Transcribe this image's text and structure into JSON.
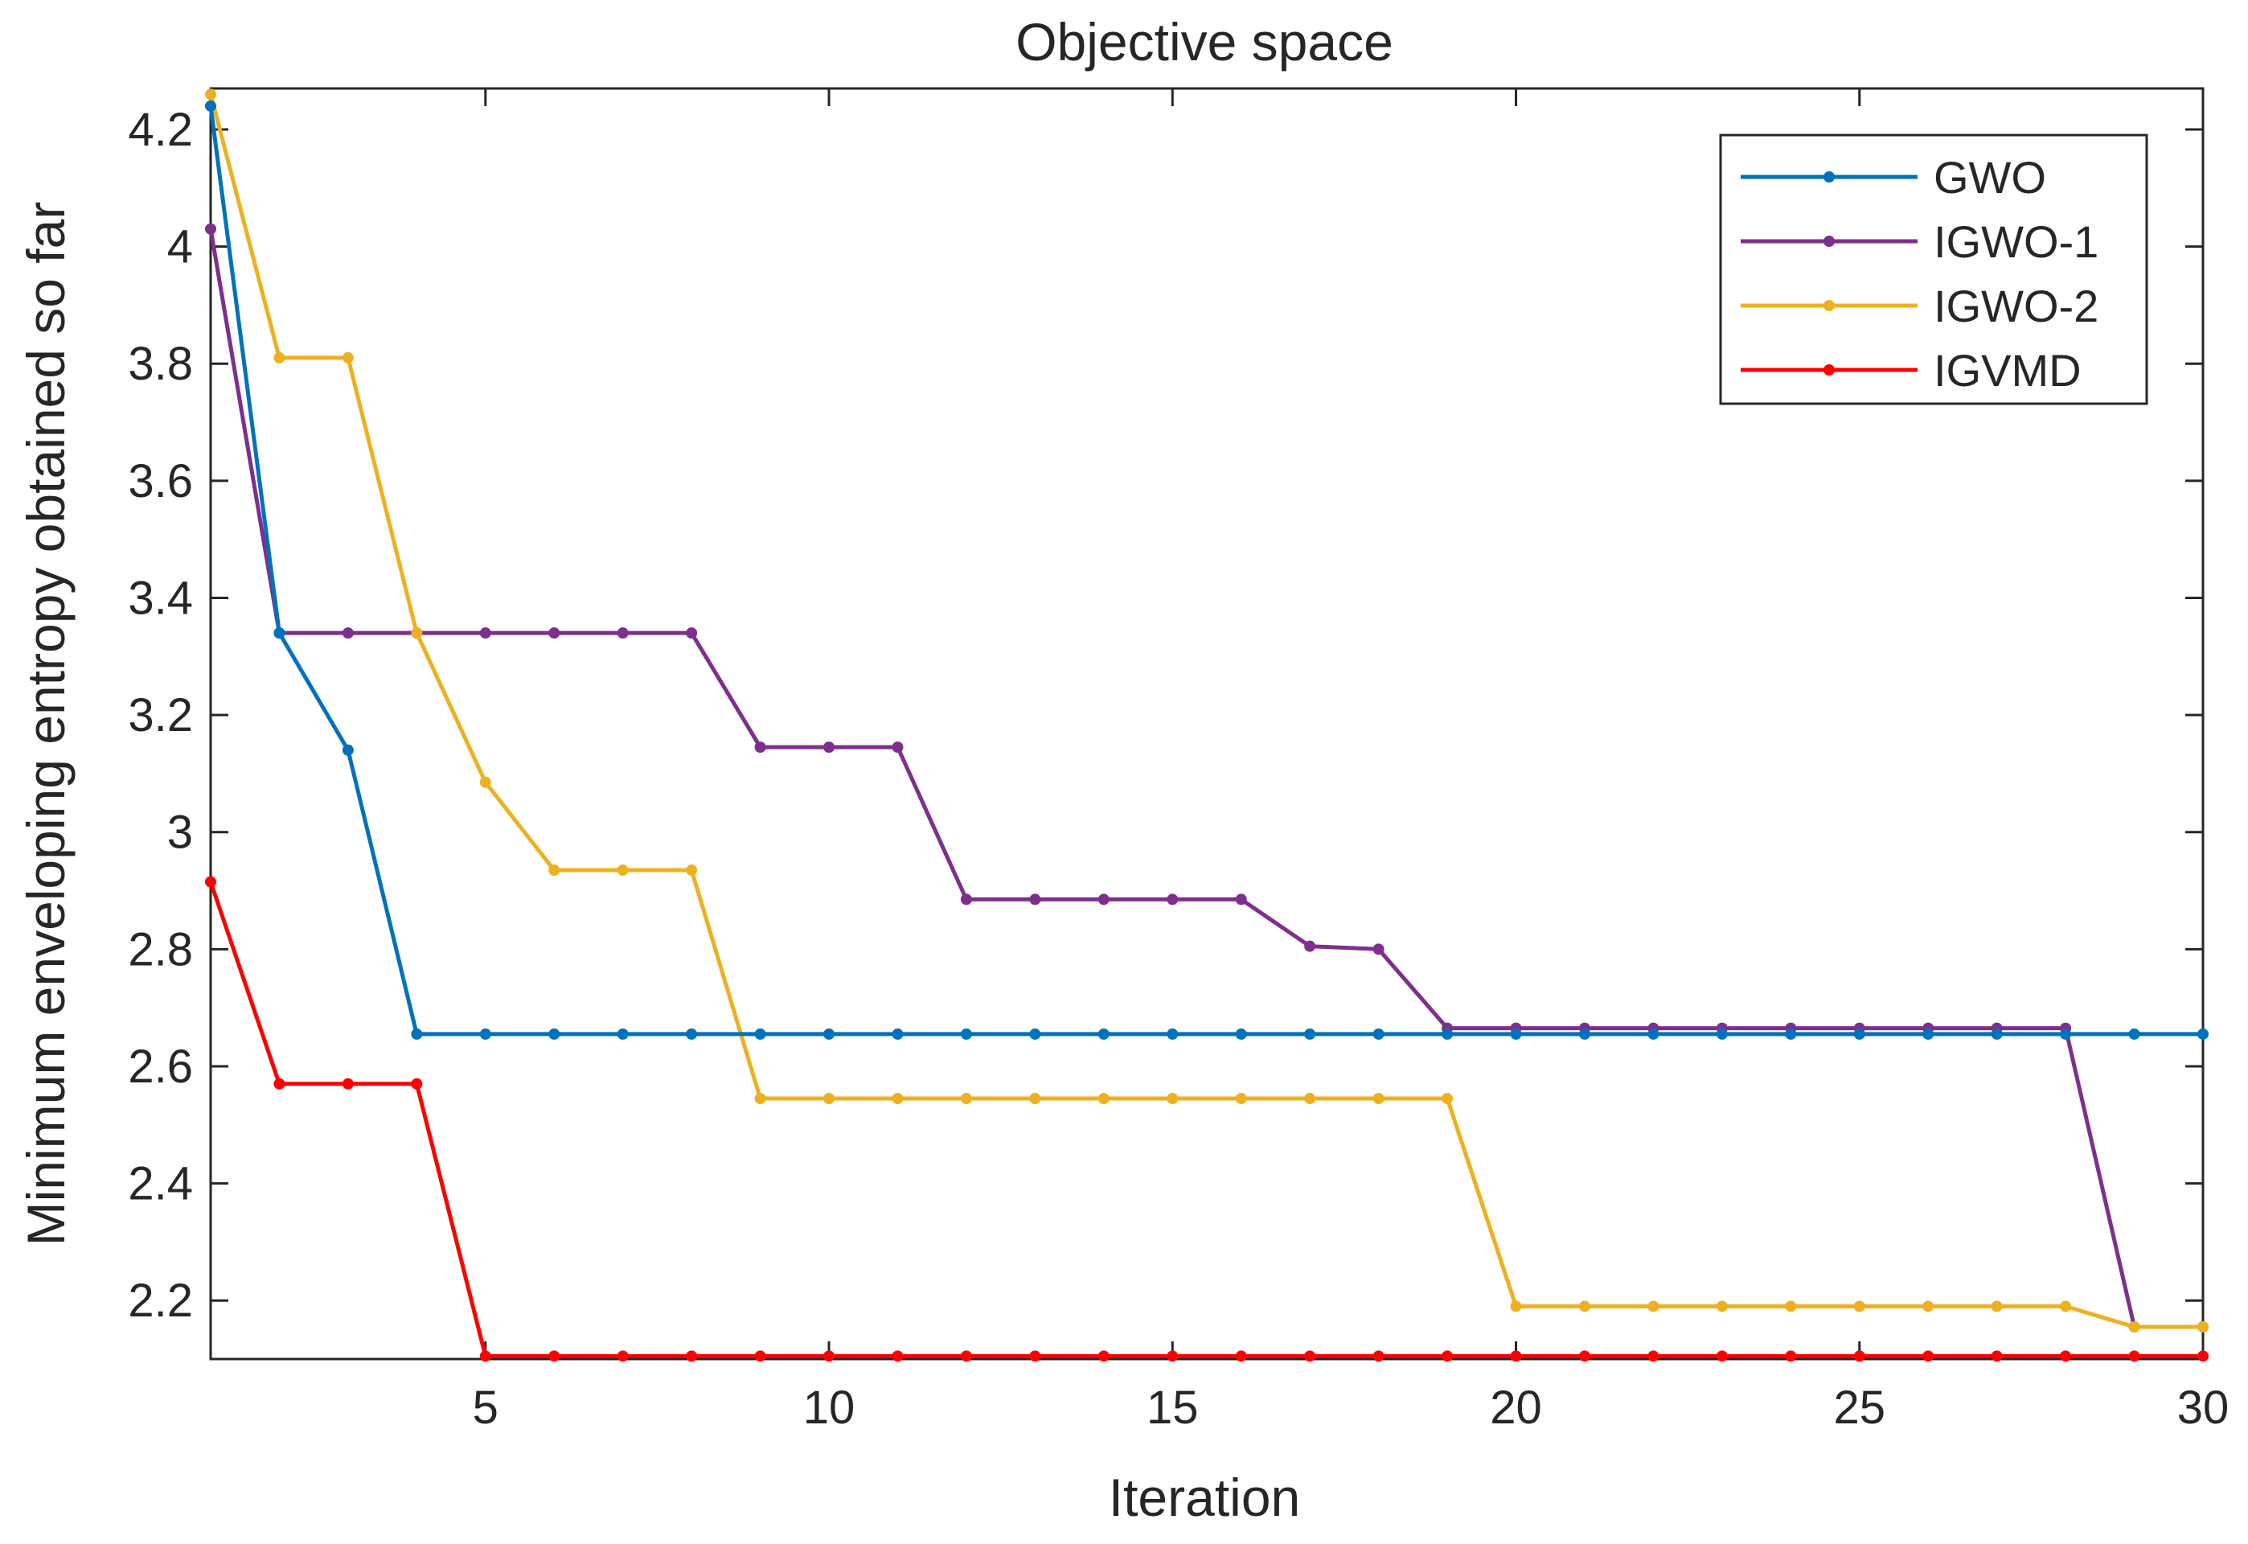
{
  "chart_data": {
    "type": "line",
    "title": "Objective space",
    "xlabel": "Iteration",
    "ylabel": "Minimum enveloping entropy obtained so far",
    "xlim": [
      1,
      30
    ],
    "ylim": [
      2.1,
      4.27
    ],
    "xticks": [
      5,
      10,
      15,
      20,
      25,
      30
    ],
    "yticks": [
      2.2,
      2.4,
      2.6,
      2.8,
      3.0,
      3.2,
      3.4,
      3.6,
      3.8,
      4.0,
      4.2
    ],
    "xtick_labels": [
      "5",
      "10",
      "15",
      "20",
      "25",
      "30"
    ],
    "ytick_labels": [
      "2.2",
      "2.4",
      "2.6",
      "2.8",
      "3",
      "3.2",
      "3.4",
      "3.6",
      "3.8",
      "4",
      "4.2"
    ],
    "grid": false,
    "legend_position": "top-right",
    "x": [
      1,
      2,
      3,
      4,
      5,
      6,
      7,
      8,
      9,
      10,
      11,
      12,
      13,
      14,
      15,
      16,
      17,
      18,
      19,
      20,
      21,
      22,
      23,
      24,
      25,
      26,
      27,
      28,
      29,
      30
    ],
    "series": [
      {
        "name": "GWO",
        "color": "#0072BD",
        "values": [
          4.24,
          3.34,
          3.14,
          2.655,
          2.655,
          2.655,
          2.655,
          2.655,
          2.655,
          2.655,
          2.655,
          2.655,
          2.655,
          2.655,
          2.655,
          2.655,
          2.655,
          2.655,
          2.655,
          2.655,
          2.655,
          2.655,
          2.655,
          2.655,
          2.655,
          2.655,
          2.655,
          2.655,
          2.655,
          2.655
        ]
      },
      {
        "name": "IGWO-1",
        "color": "#7E2F8E",
        "values": [
          4.03,
          3.34,
          3.34,
          3.34,
          3.34,
          3.34,
          3.34,
          3.34,
          3.145,
          3.145,
          3.145,
          2.885,
          2.885,
          2.885,
          2.885,
          2.885,
          2.805,
          2.8,
          2.665,
          2.665,
          2.665,
          2.665,
          2.665,
          2.665,
          2.665,
          2.665,
          2.665,
          2.665,
          2.155,
          2.155
        ]
      },
      {
        "name": "IGWO-2",
        "color": "#EDB120",
        "values": [
          4.26,
          3.81,
          3.81,
          3.34,
          3.085,
          2.935,
          2.935,
          2.935,
          2.545,
          2.545,
          2.545,
          2.545,
          2.545,
          2.545,
          2.545,
          2.545,
          2.545,
          2.545,
          2.545,
          2.19,
          2.19,
          2.19,
          2.19,
          2.19,
          2.19,
          2.19,
          2.19,
          2.19,
          2.155,
          2.155
        ]
      },
      {
        "name": "IGVMD",
        "color": "#FF0000",
        "values": [
          2.915,
          2.57,
          2.57,
          2.57,
          2.105,
          2.105,
          2.105,
          2.105,
          2.105,
          2.105,
          2.105,
          2.105,
          2.105,
          2.105,
          2.105,
          2.105,
          2.105,
          2.105,
          2.105,
          2.105,
          2.105,
          2.105,
          2.105,
          2.105,
          2.105,
          2.105,
          2.105,
          2.105,
          2.105,
          2.105
        ]
      }
    ]
  }
}
